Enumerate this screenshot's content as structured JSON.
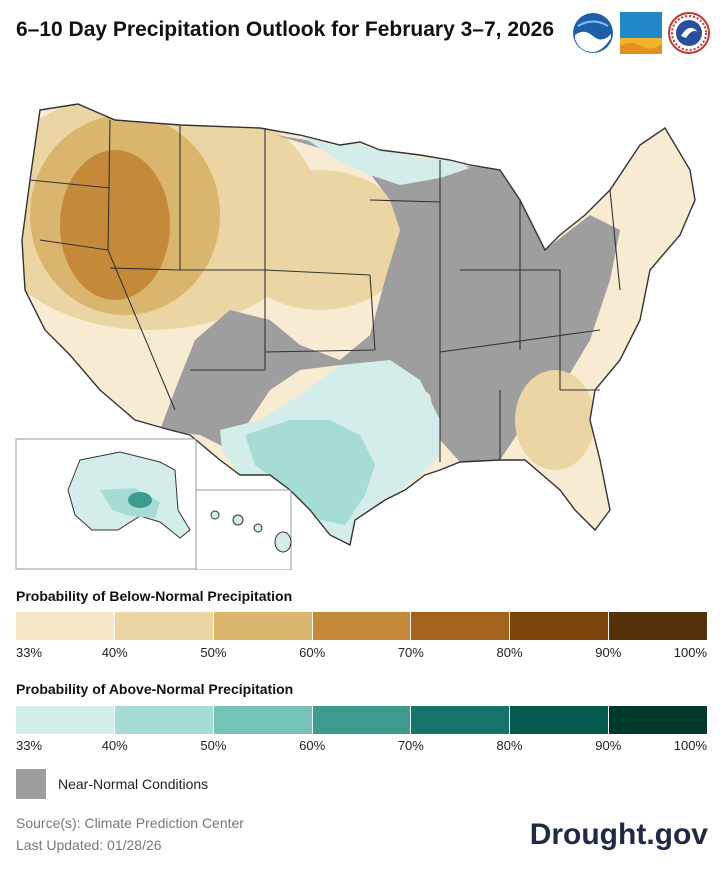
{
  "title": "6–10 Day Precipitation Outlook for February 3–7, 2026",
  "logos": {
    "noaa": "NOAA",
    "nidis": "NIDIS",
    "nws": "NATIONAL WEATHER SERVICE"
  },
  "legend_below": {
    "title": "Probability of Below-Normal Precipitation",
    "colors": [
      "#f5e8c8",
      "#ebd6a3",
      "#d9b56e",
      "#c48a3a",
      "#a3621b",
      "#7d4409",
      "#55310a"
    ],
    "ticks": [
      "33%",
      "40%",
      "50%",
      "60%",
      "70%",
      "80%",
      "90%",
      "100%"
    ]
  },
  "legend_above": {
    "title": "Probability of Above-Normal Precipitation",
    "colors": [
      "#d3eeea",
      "#a5ddd4",
      "#74c3b6",
      "#3d9a8f",
      "#15756b",
      "#055a4f",
      "#02392f"
    ],
    "ticks": [
      "33%",
      "40%",
      "50%",
      "60%",
      "70%",
      "80%",
      "90%",
      "100%"
    ]
  },
  "near_normal": {
    "label": "Near-Normal Conditions",
    "color": "#9e9e9e"
  },
  "source": {
    "line1": "Source(s): Climate Prediction Center",
    "line2": "Last Updated: 01/28/26"
  },
  "brand": "Drought.gov"
}
